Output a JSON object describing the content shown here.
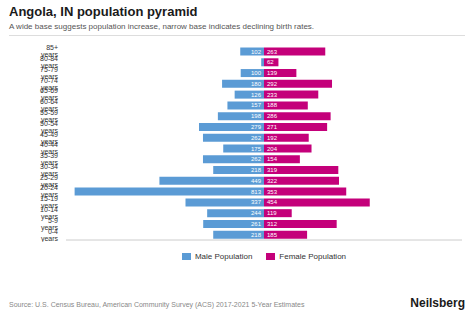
{
  "chart_data": {
    "type": "bar",
    "orientation": "horizontal",
    "title": "Angola, IN population pyramid",
    "subtitle": "A wide base suggests population increase, narrow base indicates declining birth rates.",
    "annotations": [
      "Source: U.S. Census Bureau, American Community Survey (ACS) 2017-2021 5-Year Estimates",
      "Neilsberg"
    ],
    "categories": [
      "0-4 years",
      "5-9 years",
      "10-14 years",
      "15-19 years",
      "20-24 years",
      "25-29 years",
      "30-34 years",
      "35-39 years",
      "40-44 years",
      "45-49 years",
      "50-54 years",
      "55-59 years",
      "60-64 years",
      "65-69 years",
      "70-74 years",
      "75-79 years",
      "80-84 years",
      "85+ years"
    ],
    "series": [
      {
        "name": "Male Population",
        "color": "#5b9bd5",
        "values": [
          218,
          261,
          244,
          337,
          813,
          449,
          218,
          262,
          175,
          262,
          279,
          198,
          157,
          126,
          180,
          100,
          12,
          102
        ],
        "value_labels": [
          "218",
          "261",
          "244",
          "337",
          "813",
          "449",
          "218",
          "262",
          "175",
          "262",
          "279",
          "198",
          "157",
          "126",
          "180",
          "100",
          null,
          "102"
        ]
      },
      {
        "name": "Female Population",
        "color": "#c4007a",
        "values": [
          185,
          312,
          119,
          454,
          353,
          322,
          319,
          154,
          204,
          192,
          271,
          286,
          188,
          233,
          292,
          139,
          62,
          263
        ],
        "value_labels": [
          "185",
          "312",
          "119",
          "454",
          "353",
          "322",
          "319",
          "154",
          "204",
          "192",
          "271",
          "286",
          "188",
          "233",
          "292",
          "139",
          "62",
          "263"
        ]
      }
    ],
    "xlim": [
      0,
      850
    ],
    "tick_labels": "y",
    "grid": false,
    "legend": "bottom",
    "data_labels": true
  }
}
